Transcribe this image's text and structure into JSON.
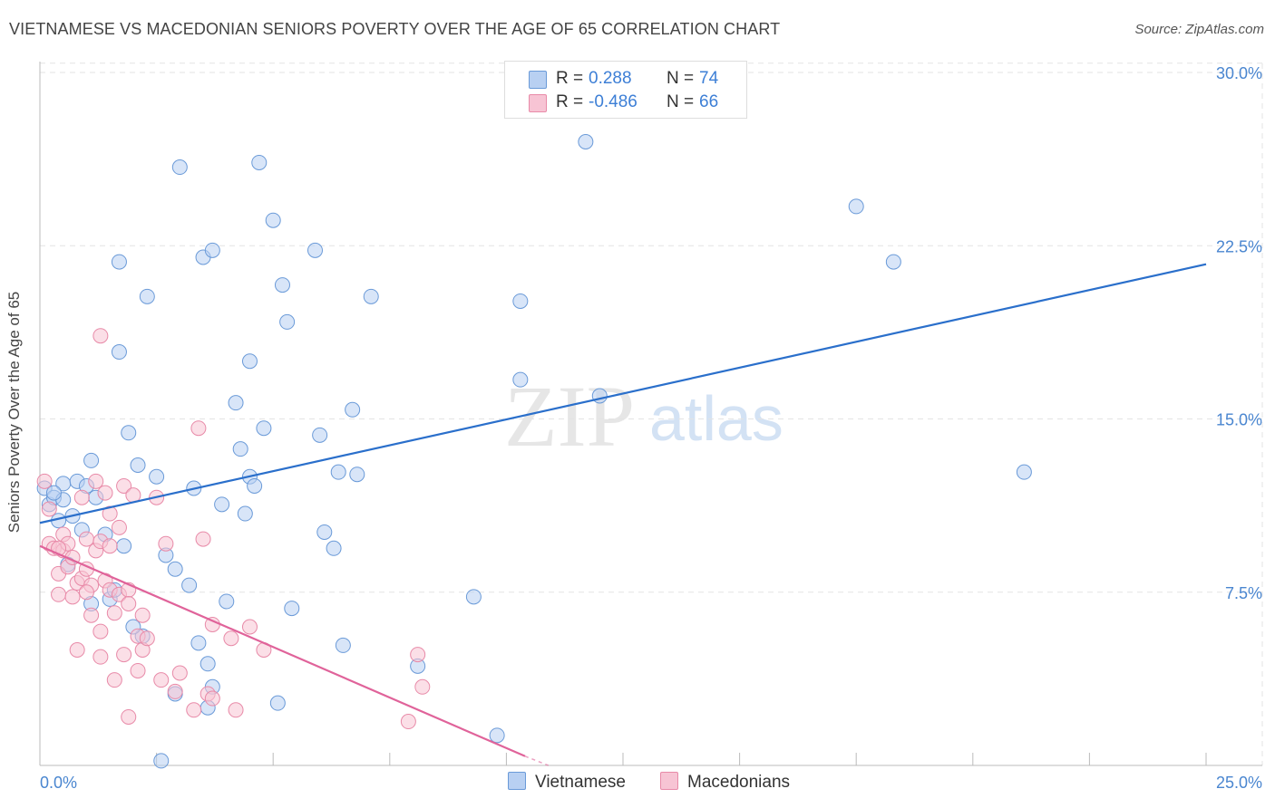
{
  "header": {
    "title": "VIETNAMESE VS MACEDONIAN SENIORS POVERTY OVER THE AGE OF 65 CORRELATION CHART",
    "source": "Source: ZipAtlas.com"
  },
  "watermark": {
    "zip": "ZIP",
    "atlas": "atlas"
  },
  "colors": {
    "vietnamese_fill": "#b8d0f2",
    "vietnamese_stroke": "#6a9ad8",
    "vietnamese_line": "#2a6fcb",
    "macedonian_fill": "#f7c4d4",
    "macedonian_stroke": "#e88aa8",
    "macedonian_line": "#e0639a",
    "tick_color": "#4a86d0",
    "grid": "#e3e3e3"
  },
  "legend": {
    "rows": [
      {
        "r_label": "R =",
        "r_value": " 0.288",
        "n_label": "N =",
        "n_value": "74"
      },
      {
        "r_label": "R =",
        "r_value": "-0.486",
        "n_label": "N =",
        "n_value": "66"
      }
    ]
  },
  "bottom_legend": {
    "series1": "Vietnamese",
    "series2": "Macedonians"
  },
  "chart_data": {
    "type": "scatter",
    "title": "VIETNAMESE VS MACEDONIAN SENIORS POVERTY OVER THE AGE OF 65 CORRELATION CHART",
    "xlabel": "",
    "ylabel": "Seniors Poverty Over the Age of 65",
    "xlim": [
      0,
      25
    ],
    "ylim": [
      0,
      30
    ],
    "x_tick_labels": [
      "0.0%",
      "25.0%"
    ],
    "y_ticks": [
      7.5,
      15,
      22.5,
      30
    ],
    "y_tick_labels": [
      "7.5%",
      "15.0%",
      "22.5%",
      "30.0%"
    ],
    "grid": true,
    "legend_position": "top-center",
    "series": [
      {
        "name": "Vietnamese",
        "r": 0.288,
        "n": 74,
        "trend": {
          "x": [
            0,
            25
          ],
          "y": [
            10.5,
            21.7
          ]
        },
        "points": [
          [
            0.1,
            12.0
          ],
          [
            0.2,
            11.3
          ],
          [
            0.3,
            11.6
          ],
          [
            0.4,
            10.6
          ],
          [
            0.5,
            12.2
          ],
          [
            0.5,
            11.5
          ],
          [
            0.6,
            8.7
          ],
          [
            0.7,
            10.8
          ],
          [
            0.8,
            12.3
          ],
          [
            0.9,
            10.2
          ],
          [
            1.0,
            12.1
          ],
          [
            1.2,
            11.6
          ],
          [
            1.1,
            13.2
          ],
          [
            1.4,
            10.0
          ],
          [
            1.5,
            7.2
          ],
          [
            1.6,
            7.6
          ],
          [
            1.8,
            9.5
          ],
          [
            1.9,
            14.4
          ],
          [
            2.1,
            13.0
          ],
          [
            1.7,
            17.9
          ],
          [
            1.7,
            21.8
          ],
          [
            2.3,
            20.3
          ],
          [
            2.2,
            5.6
          ],
          [
            2.5,
            12.5
          ],
          [
            2.7,
            9.1
          ],
          [
            2.9,
            8.5
          ],
          [
            3.2,
            7.8
          ],
          [
            2.9,
            3.1
          ],
          [
            3.3,
            12.0
          ],
          [
            3.0,
            25.9
          ],
          [
            3.5,
            22.0
          ],
          [
            3.7,
            22.3
          ],
          [
            3.4,
            5.3
          ],
          [
            3.6,
            4.4
          ],
          [
            3.7,
            3.4
          ],
          [
            3.6,
            2.5
          ],
          [
            4.0,
            7.1
          ],
          [
            4.2,
            15.7
          ],
          [
            4.3,
            13.7
          ],
          [
            4.4,
            10.9
          ],
          [
            4.5,
            12.5
          ],
          [
            4.6,
            12.1
          ],
          [
            4.5,
            17.5
          ],
          [
            4.7,
            26.1
          ],
          [
            4.8,
            14.6
          ],
          [
            5.0,
            23.6
          ],
          [
            5.2,
            20.8
          ],
          [
            5.3,
            19.2
          ],
          [
            5.1,
            2.7
          ],
          [
            5.4,
            6.8
          ],
          [
            5.9,
            22.3
          ],
          [
            6.0,
            14.3
          ],
          [
            6.1,
            10.1
          ],
          [
            6.3,
            9.4
          ],
          [
            6.4,
            12.7
          ],
          [
            6.5,
            5.2
          ],
          [
            6.7,
            15.4
          ],
          [
            6.8,
            12.6
          ],
          [
            7.1,
            20.3
          ],
          [
            8.1,
            4.3
          ],
          [
            9.3,
            7.3
          ],
          [
            9.8,
            1.3
          ],
          [
            10.3,
            20.1
          ],
          [
            10.3,
            16.7
          ],
          [
            11.7,
            27.0
          ],
          [
            12.0,
            16.0
          ],
          [
            17.5,
            24.2
          ],
          [
            18.3,
            21.8
          ],
          [
            21.1,
            12.7
          ],
          [
            2.6,
            0.2
          ],
          [
            2.0,
            6.0
          ],
          [
            1.1,
            7.0
          ],
          [
            3.9,
            11.3
          ],
          [
            0.3,
            11.8
          ]
        ]
      },
      {
        "name": "Macedonians",
        "r": -0.486,
        "n": 66,
        "trend": {
          "x": [
            0,
            10.4
          ],
          "y": [
            9.5,
            0.4
          ]
        },
        "dashed_extension": {
          "x": [
            10.4,
            10.9
          ],
          "y": [
            0.4,
            0.0
          ]
        },
        "points": [
          [
            0.1,
            12.3
          ],
          [
            0.2,
            11.1
          ],
          [
            0.2,
            9.6
          ],
          [
            0.3,
            9.4
          ],
          [
            0.4,
            8.3
          ],
          [
            0.4,
            7.4
          ],
          [
            0.5,
            10.0
          ],
          [
            0.5,
            9.3
          ],
          [
            0.6,
            8.6
          ],
          [
            0.6,
            9.6
          ],
          [
            0.7,
            7.3
          ],
          [
            0.8,
            7.9
          ],
          [
            0.8,
            5.0
          ],
          [
            0.9,
            11.6
          ],
          [
            0.9,
            8.1
          ],
          [
            1.0,
            8.5
          ],
          [
            1.1,
            6.5
          ],
          [
            1.1,
            7.8
          ],
          [
            1.0,
            9.8
          ],
          [
            1.2,
            9.3
          ],
          [
            1.2,
            12.3
          ],
          [
            1.3,
            9.7
          ],
          [
            1.3,
            5.8
          ],
          [
            1.3,
            4.7
          ],
          [
            1.4,
            11.8
          ],
          [
            1.4,
            8.0
          ],
          [
            1.5,
            7.6
          ],
          [
            1.5,
            10.9
          ],
          [
            1.6,
            6.6
          ],
          [
            1.6,
            3.7
          ],
          [
            1.7,
            10.3
          ],
          [
            1.7,
            7.4
          ],
          [
            1.8,
            4.8
          ],
          [
            1.8,
            12.1
          ],
          [
            1.9,
            7.6
          ],
          [
            1.9,
            7.0
          ],
          [
            1.9,
            2.1
          ],
          [
            2.0,
            11.7
          ],
          [
            2.1,
            5.6
          ],
          [
            2.1,
            4.1
          ],
          [
            2.2,
            6.5
          ],
          [
            2.2,
            5.0
          ],
          [
            2.5,
            11.6
          ],
          [
            2.6,
            3.7
          ],
          [
            2.7,
            9.6
          ],
          [
            2.9,
            3.2
          ],
          [
            3.0,
            4.0
          ],
          [
            3.3,
            2.4
          ],
          [
            3.4,
            14.6
          ],
          [
            3.5,
            9.8
          ],
          [
            3.6,
            3.1
          ],
          [
            3.7,
            2.9
          ],
          [
            3.7,
            6.1
          ],
          [
            4.1,
            5.5
          ],
          [
            4.2,
            2.4
          ],
          [
            4.5,
            6.0
          ],
          [
            4.8,
            5.0
          ],
          [
            7.9,
            1.9
          ],
          [
            8.1,
            4.8
          ],
          [
            8.2,
            3.4
          ],
          [
            1.3,
            18.6
          ],
          [
            0.4,
            9.4
          ],
          [
            1.0,
            7.5
          ],
          [
            0.7,
            9.0
          ],
          [
            2.3,
            5.5
          ],
          [
            1.5,
            9.5
          ]
        ]
      }
    ]
  }
}
